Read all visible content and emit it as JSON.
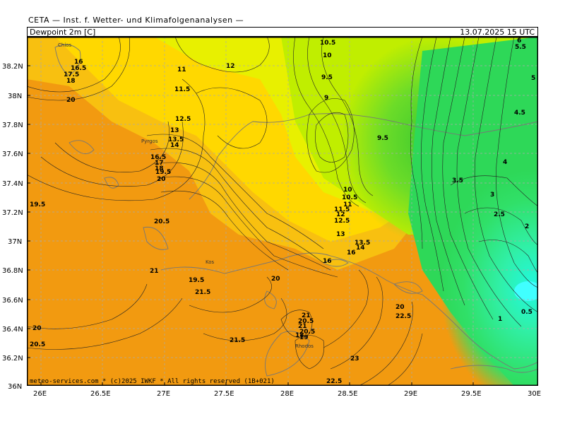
{
  "header": {
    "title": "CETA — Inst. f. Wetter- und Klimafolgenanalysen —",
    "parameter": "Dewpoint 2m [C]",
    "datetime": "13.07.2025 15 UTC"
  },
  "map": {
    "lat_labels": [
      "38.2N",
      "38N",
      "37.8N",
      "37.6N",
      "37.4N",
      "37.2N",
      "37N",
      "36.8N",
      "36.6N",
      "36.4N",
      "36.2N",
      "36N"
    ],
    "lon_labels": [
      "26E",
      "26.5E",
      "27E",
      "27.5E",
      "28E",
      "28.5E",
      "29E",
      "29.5E",
      "30E"
    ],
    "color_scale": {
      "warm": "#f29a10",
      "mid": "#ffd400",
      "lime": "#c8f000",
      "green": "#50d838",
      "cyan": "#30f0c8"
    },
    "contour_labels": [
      {
        "text": "10.5"
      },
      {
        "text": "10"
      },
      {
        "text": "9.5"
      },
      {
        "text": "9"
      },
      {
        "text": "9.5"
      },
      {
        "text": "11"
      },
      {
        "text": "12"
      },
      {
        "text": "11.5"
      },
      {
        "text": "12.5"
      },
      {
        "text": "13"
      },
      {
        "text": "13.5"
      },
      {
        "text": "14"
      },
      {
        "text": "16"
      },
      {
        "text": "16.5"
      },
      {
        "text": "17.5"
      },
      {
        "text": "18"
      },
      {
        "text": "20"
      },
      {
        "text": "16.5"
      },
      {
        "text": "17"
      },
      {
        "text": "18"
      },
      {
        "text": "19.5"
      },
      {
        "text": "20"
      },
      {
        "text": "19.5"
      },
      {
        "text": "20.5"
      },
      {
        "text": "21"
      },
      {
        "text": "21.5"
      },
      {
        "text": "19.5"
      },
      {
        "text": "16"
      },
      {
        "text": "21"
      },
      {
        "text": "21.5"
      },
      {
        "text": "20"
      },
      {
        "text": "20.5"
      },
      {
        "text": "20"
      },
      {
        "text": "20.5"
      },
      {
        "text": "21"
      },
      {
        "text": "20.5"
      },
      {
        "text": "19"
      },
      {
        "text": "18"
      },
      {
        "text": "22.5"
      },
      {
        "text": "23"
      },
      {
        "text": "22.5"
      },
      {
        "text": "20"
      },
      {
        "text": "10"
      },
      {
        "text": "10.5"
      },
      {
        "text": "11"
      },
      {
        "text": "11.5"
      },
      {
        "text": "12"
      },
      {
        "text": "12.5"
      },
      {
        "text": "13"
      },
      {
        "text": "13.5"
      },
      {
        "text": "14"
      },
      {
        "text": "16"
      },
      {
        "text": "6"
      },
      {
        "text": "5.5"
      },
      {
        "text": "5"
      },
      {
        "text": "4.5"
      },
      {
        "text": "4"
      },
      {
        "text": "3.5"
      },
      {
        "text": "3"
      },
      {
        "text": "2.5"
      },
      {
        "text": "2"
      },
      {
        "text": "1"
      },
      {
        "text": "0.5"
      }
    ],
    "place_labels": [
      "Chios",
      "Pyrgos",
      "Kos",
      "Rhodos"
    ]
  },
  "footer": {
    "copyright": "meteo-services.com * (c)2025 IWKF * All rights reserved (1B+021)"
  }
}
